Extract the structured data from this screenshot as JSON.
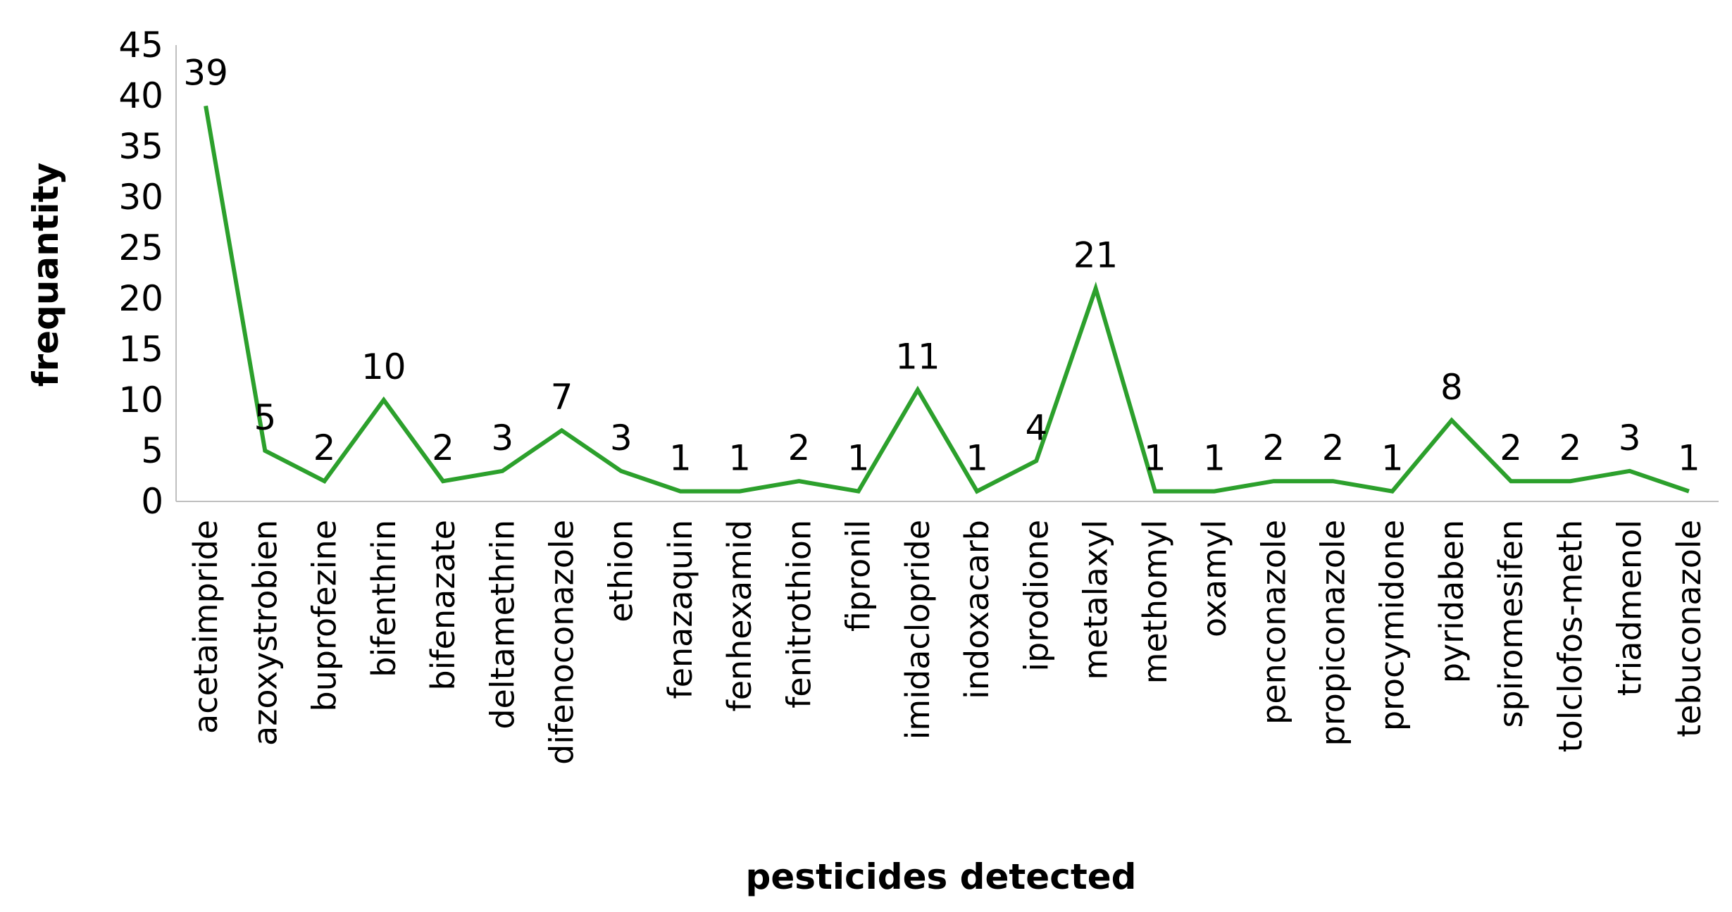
{
  "chart_data": {
    "type": "line",
    "title": "",
    "xlabel": "pesticides detected",
    "ylabel": "frequantity",
    "ylim": [
      0,
      45
    ],
    "yticks": [
      0,
      5,
      10,
      15,
      20,
      25,
      30,
      35,
      40,
      45
    ],
    "grid": false,
    "legend": "none",
    "categories": [
      "acetaimpride",
      "azoxystrobien",
      "buprofezine",
      "bifenthrin",
      "bifenazate",
      "deltamethrin",
      "difenoconazole",
      "ethion",
      "fenazaquin",
      "fenhexamid",
      "fenitrothion",
      "fipronil",
      "imidaclopride",
      "indoxacarb",
      "iprodione",
      "metalaxyl",
      "methomyl",
      "oxamyl",
      "penconazole",
      "propiconazole",
      "procymidone",
      "pyridaben",
      "spiromesifen",
      "tolclofos-meth",
      "triadmenol",
      "tebuconazole"
    ],
    "series": [
      {
        "values": [
          39,
          5,
          2,
          10,
          2,
          3,
          7,
          3,
          1,
          1,
          2,
          1,
          11,
          1,
          4,
          21,
          1,
          1,
          2,
          2,
          1,
          8,
          2,
          2,
          3,
          1
        ]
      }
    ],
    "line_color": "#2ca02c",
    "axis_color": "#bfbfbf"
  }
}
